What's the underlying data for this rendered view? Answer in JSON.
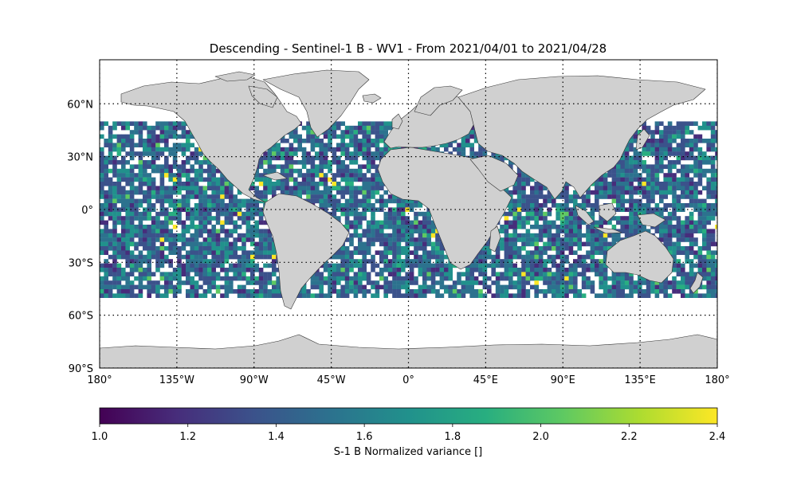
{
  "title": "Descending - Sentinel-1 B - WV1 - From 2021/04/01 to 2021/04/28",
  "map": {
    "projection": "PlateCarree",
    "lon_range": [
      -180,
      180
    ],
    "lat_range": [
      -90,
      90
    ],
    "land_color": "#d0d0d0",
    "coastline_color": "#333333",
    "gridlines": "dotted",
    "lon_ticks": [
      {
        "value": -180,
        "label": "180°"
      },
      {
        "value": -135,
        "label": "135°W"
      },
      {
        "value": -90,
        "label": "90°W"
      },
      {
        "value": -45,
        "label": "45°W"
      },
      {
        "value": 0,
        "label": "0°"
      },
      {
        "value": 45,
        "label": "45°E"
      },
      {
        "value": 90,
        "label": "90°E"
      },
      {
        "value": 135,
        "label": "135°E"
      },
      {
        "value": 180,
        "label": "180°"
      }
    ],
    "lat_ticks": [
      {
        "value": 60,
        "label": "60°N"
      },
      {
        "value": 30,
        "label": "30°N"
      },
      {
        "value": 0,
        "label": "0°"
      },
      {
        "value": -30,
        "label": "30°S"
      },
      {
        "value": -60,
        "label": "60°S"
      },
      {
        "value": -90,
        "label": "90°S"
      }
    ],
    "data_lat_extent": [
      -50,
      50
    ]
  },
  "colorbar": {
    "colormap": "viridis",
    "min": 1.0,
    "max": 2.4,
    "ticks": [
      "1.0",
      "1.2",
      "1.4",
      "1.6",
      "1.8",
      "2.0",
      "2.2",
      "2.4"
    ],
    "label": "S-1 B Normalized variance []"
  }
}
